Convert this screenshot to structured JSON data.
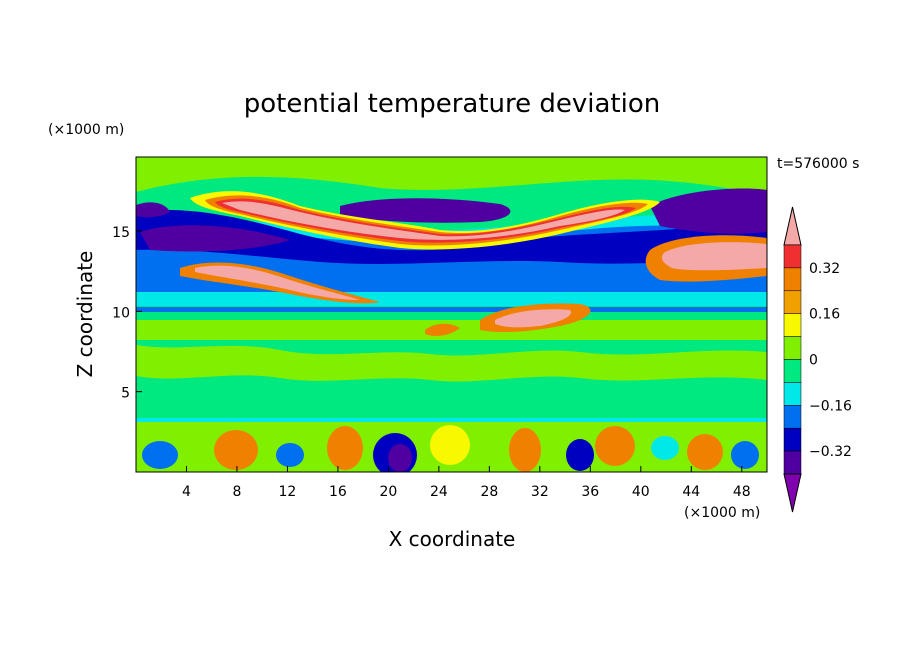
{
  "chart_data": {
    "type": "heatmap",
    "title": "potential temperature deviation",
    "xlabel": "X coordinate",
    "ylabel": "Z coordinate",
    "x_unit_label": "(×1000 m)",
    "y_unit_label": "(×1000 m)",
    "time_label": "t=576000 s",
    "xlim": [
      0,
      50
    ],
    "ylim": [
      0,
      19.6
    ],
    "x_ticks": [
      4,
      8,
      12,
      16,
      20,
      24,
      28,
      32,
      36,
      40,
      44,
      48
    ],
    "x_tick_labels": [
      "4",
      "8",
      "12",
      "16",
      "20",
      "24",
      "28",
      "32",
      "36",
      "40",
      "44",
      "48"
    ],
    "y_ticks": [
      5,
      10,
      15
    ],
    "y_tick_labels": [
      "5",
      "10",
      "15"
    ],
    "colorbar": {
      "levels": [
        -0.4,
        -0.32,
        -0.24,
        -0.16,
        -0.08,
        0,
        0.08,
        0.16,
        0.24,
        0.32,
        0.4
      ],
      "tick_values": [
        0.32,
        0.16,
        0,
        -0.16,
        -0.32
      ],
      "tick_labels": [
        "0.32",
        "0.16",
        "0",
        "−0.16",
        "−0.32"
      ],
      "colors_top_to_bottom": [
        "#f4a8a8",
        "#f03030",
        "#f08000",
        "#f0a000",
        "#f8f800",
        "#80f000",
        "#00e880",
        "#00e8e8",
        "#0070f0",
        "#0000c0",
        "#5000a0",
        "#8000b0"
      ]
    },
    "bands": [
      {
        "z": [
          0,
          3.6
        ],
        "pattern": "convective cells",
        "value_range": [
          -0.4,
          0.24
        ]
      },
      {
        "z": [
          3.6,
          8.5
        ],
        "value": 0.0
      },
      {
        "z": [
          8.5,
          10.2
        ],
        "value": 0.04
      },
      {
        "z": [
          10.2,
          10.5
        ],
        "value": -0.12
      },
      {
        "z": [
          10.5,
          11.3
        ],
        "value": -0.06
      },
      {
        "z": [
          11.3,
          14.2
        ],
        "value": -0.2
      },
      {
        "z": [
          14.2,
          15.8
        ],
        "value": -0.4
      },
      {
        "z": [
          15.8,
          17.8
        ],
        "value": 0.45
      },
      {
        "z": [
          17.8,
          19.6
        ],
        "value": 0.05
      }
    ]
  }
}
